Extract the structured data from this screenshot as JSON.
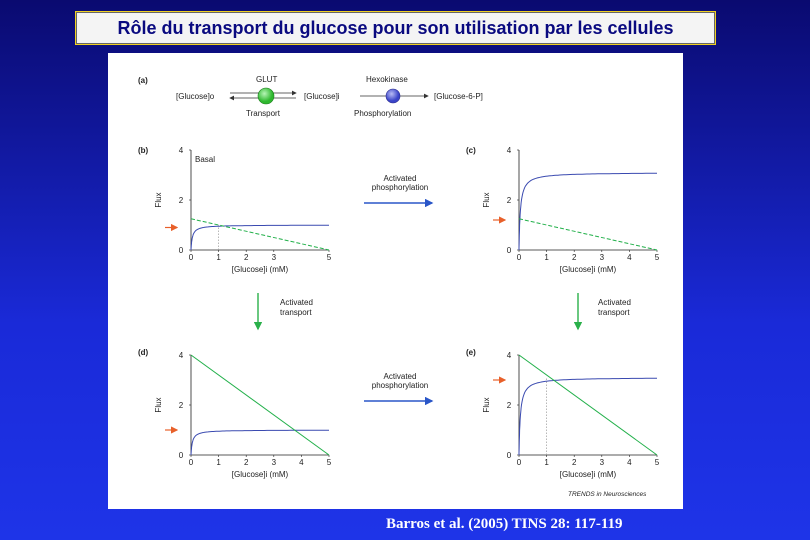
{
  "title": "Rôle du transport du glucose pour son utilisation par les cellules",
  "citation": "Barros et al. (2005) TINS 28: 117-119",
  "colors": {
    "glut": "#3fcf3f",
    "hexokinase": "#4a56d8",
    "blue_curve": "#3a4ab0",
    "green_line": "#22b04a",
    "arrow_orange": "#e8602a",
    "arrow_blue": "#2a56c8",
    "arrow_green": "#2ab04a"
  },
  "scheme": {
    "label": "(a)",
    "glut": "GLUT",
    "hexokinase": "Hexokinase",
    "glucose_o": "[Glucose]o",
    "glucose_i": "[Glucose]i",
    "g6p": "[Glucose-6-P]",
    "transport": "Transport",
    "phosphorylation": "Phosphorylation"
  },
  "arrows": {
    "activated_phosphorylation": [
      "Activated",
      "phosphorylation"
    ],
    "activated_transport": [
      "Activated",
      "transport"
    ]
  },
  "credit": "TRENDS in Neurosciences",
  "chart_data": [
    {
      "type": "line",
      "label": "(b)",
      "annotation": "Basal",
      "ylabel": "Flux",
      "xlabel": "[Glucose]i (mM)",
      "x_ticks": [
        0,
        1,
        2,
        3,
        5
      ],
      "xlim": [
        0,
        5
      ],
      "y_ticks": [
        0,
        2,
        4
      ],
      "ylim": [
        0,
        4
      ],
      "series": [
        {
          "kind": "saturation",
          "vmax": 1.0,
          "km": 0.05
        },
        {
          "kind": "linear",
          "y0": 1.25,
          "x1": 5
        }
      ],
      "intersection_x": 1,
      "arrow_y": 0.9
    },
    {
      "type": "line",
      "label": "(c)",
      "ylabel": "Flux",
      "xlabel": "[Glucose]i (mM)",
      "x_ticks": [
        0,
        1,
        2,
        3,
        4,
        5
      ],
      "xlim": [
        0,
        5
      ],
      "y_ticks": [
        0,
        2,
        4
      ],
      "ylim": [
        0,
        4
      ],
      "series": [
        {
          "kind": "saturation",
          "vmax": 3.1,
          "km": 0.05
        },
        {
          "kind": "linear",
          "y0": 1.25,
          "x1": 5
        }
      ],
      "arrow_y": 1.2
    },
    {
      "type": "line",
      "label": "(d)",
      "ylabel": "Flux",
      "xlabel": "[Glucose]i (mM)",
      "x_ticks": [
        0,
        1,
        2,
        3,
        4,
        5
      ],
      "xlim": [
        0,
        5
      ],
      "y_ticks": [
        0,
        2,
        4
      ],
      "ylim": [
        0,
        4
      ],
      "series": [
        {
          "kind": "saturation",
          "vmax": 1.0,
          "km": 0.05
        },
        {
          "kind": "linear",
          "y0": 4,
          "x1": 5
        }
      ],
      "arrow_y": 1.0
    },
    {
      "type": "line",
      "label": "(e)",
      "ylabel": "Flux",
      "xlabel": "[Glucose]i (mM)",
      "x_ticks": [
        0,
        1,
        2,
        3,
        4,
        5
      ],
      "xlim": [
        0,
        5
      ],
      "y_ticks": [
        0,
        2,
        4
      ],
      "ylim": [
        0,
        4
      ],
      "series": [
        {
          "kind": "saturation",
          "vmax": 3.1,
          "km": 0.05
        },
        {
          "kind": "linear",
          "y0": 4,
          "x1": 5
        }
      ],
      "intersection_x": 1,
      "arrow_y": 3.0
    }
  ]
}
